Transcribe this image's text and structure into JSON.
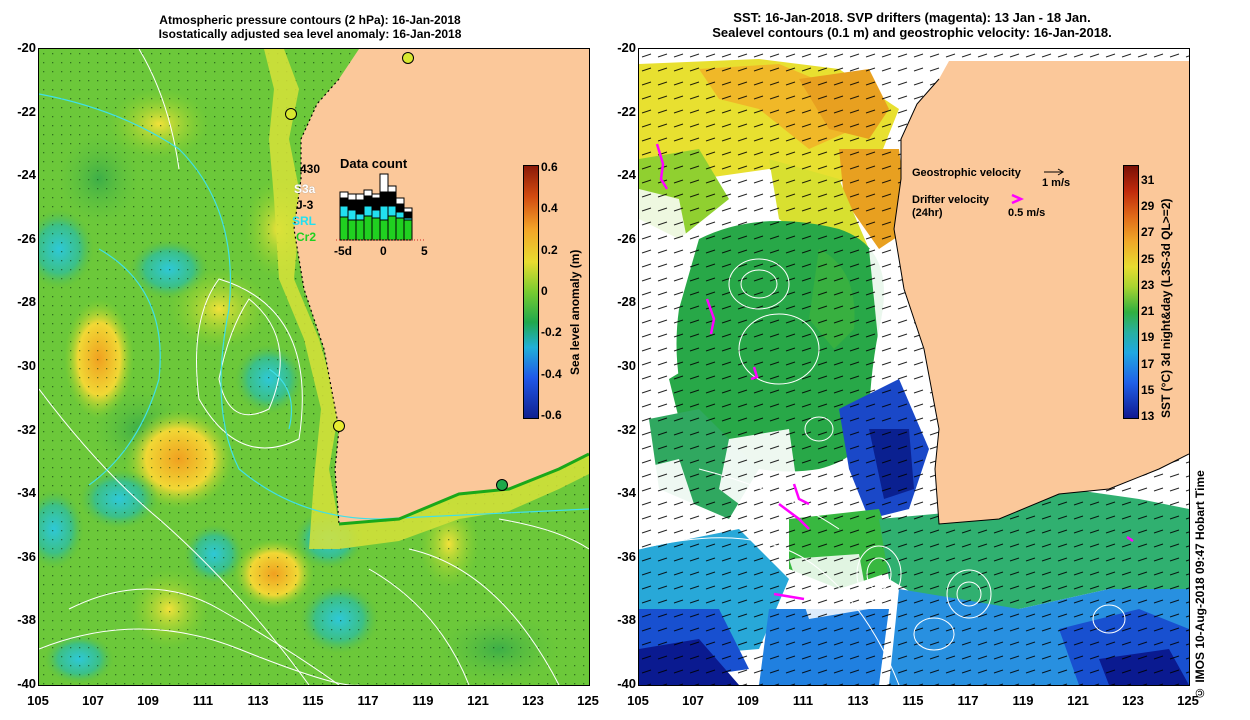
{
  "left": {
    "title_line1": "Atmospheric pressure contours (2 hPa): 16-Jan-2018",
    "title_line2": "Isostatically adjusted sea level anomaly: 16-Jan-2018",
    "colorbar": {
      "label": "Sea level anomaly (m)",
      "ticks": [
        "0.6",
        "0.4",
        "0.2",
        "0",
        "-0.2",
        "-0.4",
        "-0.6"
      ]
    },
    "data_count": {
      "title": "Data count",
      "max": "430",
      "legend": [
        "S3a",
        "J-3",
        "SRL",
        "Cr2"
      ],
      "legend_colors": [
        "#ffffff",
        "#000000",
        "#22e0f0",
        "#20d020"
      ],
      "axis_ticks": [
        "-5d",
        "0",
        "5"
      ]
    }
  },
  "right": {
    "title_line1": "SST: 16-Jan-2018. SVP drifters (magenta): 13 Jan - 18 Jan.",
    "title_line2": "Sealevel contours (0.1 m) and geostrophic velocity: 16-Jan-2018.",
    "legend": {
      "geo_label": "Geostrophic velocity",
      "geo_value": "1 m/s",
      "drifter_label": "Drifter velocity",
      "drifter_sub": "(24hr)",
      "drifter_value": "0.5 m/s"
    },
    "colorbar": {
      "label": "SST (°C) 3d night&day (L3S-3d QL>=2)",
      "ticks": [
        "31",
        "29",
        "27",
        "25",
        "23",
        "21",
        "19",
        "17",
        "15",
        "13"
      ]
    }
  },
  "axes": {
    "lat_ticks": [
      "-20",
      "-22",
      "-24",
      "-26",
      "-28",
      "-30",
      "-32",
      "-34",
      "-36",
      "-38",
      "-40"
    ],
    "lon_ticks": [
      "105",
      "107",
      "109",
      "111",
      "113",
      "115",
      "117",
      "119",
      "121",
      "123",
      "125"
    ]
  },
  "credit": "© IMOS 10-Aug-2018 09:47 Hobart Time"
}
